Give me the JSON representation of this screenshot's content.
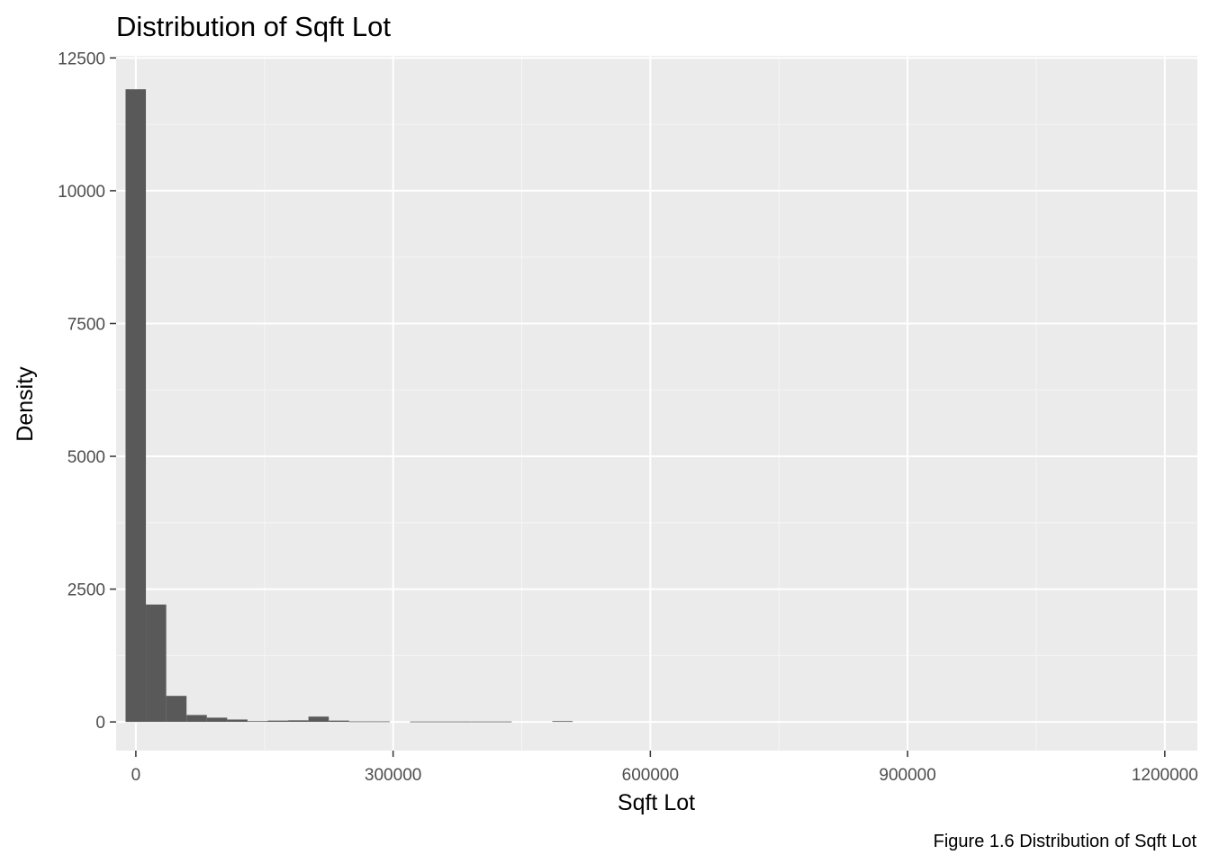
{
  "chart_data": {
    "type": "bar",
    "title": "Distribution of Sqft Lot",
    "xlabel": "Sqft Lot",
    "ylabel": "Density",
    "caption": "Figure 1.6 Distribution of Sqft Lot",
    "xlim": [
      -23000,
      1238000
    ],
    "ylim": [
      -540,
      12540
    ],
    "x_ticks": [
      0,
      300000,
      600000,
      900000,
      1200000
    ],
    "x_tick_labels": [
      "0",
      "300000",
      "600000",
      "900000",
      "1200000"
    ],
    "y_ticks": [
      0,
      2500,
      5000,
      7500,
      10000,
      12500
    ],
    "y_tick_labels": [
      "0",
      "2500",
      "5000",
      "7500",
      "10000",
      "12500"
    ],
    "bin_width": 23700,
    "bins": [
      {
        "x0": -12000,
        "x1": 11700,
        "value": 11910
      },
      {
        "x0": 11700,
        "x1": 35400,
        "value": 2210
      },
      {
        "x0": 35400,
        "x1": 59100,
        "value": 490
      },
      {
        "x0": 59100,
        "x1": 82800,
        "value": 130
      },
      {
        "x0": 82800,
        "x1": 106500,
        "value": 80
      },
      {
        "x0": 106500,
        "x1": 130200,
        "value": 45
      },
      {
        "x0": 130200,
        "x1": 153900,
        "value": 15
      },
      {
        "x0": 153900,
        "x1": 177600,
        "value": 25
      },
      {
        "x0": 177600,
        "x1": 201300,
        "value": 30
      },
      {
        "x0": 201300,
        "x1": 225000,
        "value": 100
      },
      {
        "x0": 225000,
        "x1": 248700,
        "value": 25
      },
      {
        "x0": 248700,
        "x1": 272400,
        "value": 10
      },
      {
        "x0": 272400,
        "x1": 296100,
        "value": 10
      },
      {
        "x0": 296100,
        "x1": 319800,
        "value": 0
      },
      {
        "x0": 319800,
        "x1": 343500,
        "value": 8
      },
      {
        "x0": 343500,
        "x1": 367200,
        "value": 8
      },
      {
        "x0": 367200,
        "x1": 390900,
        "value": 8
      },
      {
        "x0": 390900,
        "x1": 414600,
        "value": 8
      },
      {
        "x0": 414600,
        "x1": 438300,
        "value": 8
      },
      {
        "x0": 438300,
        "x1": 462000,
        "value": 0
      },
      {
        "x0": 462000,
        "x1": 485700,
        "value": 0
      },
      {
        "x0": 485700,
        "x1": 509400,
        "value": 15
      }
    ],
    "colors": {
      "panel_background": "#ebebeb",
      "grid_major": "#ffffff",
      "grid_minor": "#f5f5f5",
      "bar_fill": "#595959",
      "tick_color": "#333333",
      "tick_label_color": "#4d4d4d"
    },
    "grid": true,
    "legend": "none"
  }
}
